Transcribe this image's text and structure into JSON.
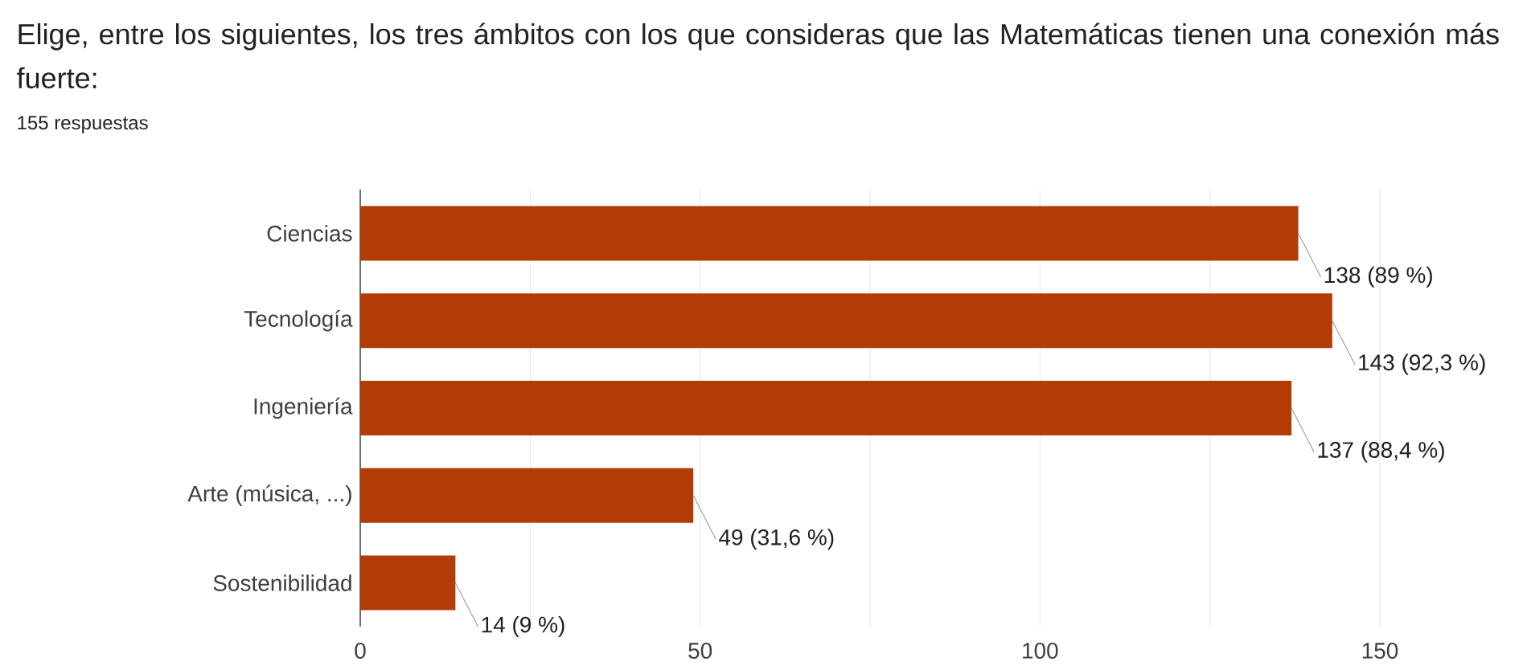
{
  "chart_data": {
    "type": "bar",
    "orientation": "horizontal",
    "title": "Elige, entre los siguientes, los tres ámbitos con los que consideras que las Matemáticas tienen una conexión más fuerte:",
    "subtitle": "155 respuestas",
    "categories": [
      "Ciencias",
      "Tecnología",
      "Ingeniería",
      "Arte (música, ...)",
      "Sostenibilidad"
    ],
    "values": [
      138,
      143,
      137,
      49,
      14
    ],
    "value_labels": [
      "138 (89 %)",
      "143 (92,3 %)",
      "137 (88,4 %)",
      "49 (31,6 %)",
      "14 (9 %)"
    ],
    "color": "#b33b06",
    "xlim": [
      0,
      150
    ],
    "xticks": [
      0,
      {
        "value": 25,
        "label": null
      },
      50,
      {
        "value": 75,
        "label": null
      },
      100,
      {
        "value": 125,
        "label": null
      },
      150
    ],
    "grid": "x"
  }
}
